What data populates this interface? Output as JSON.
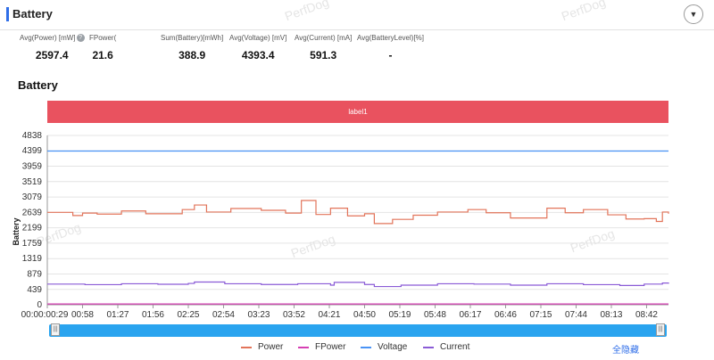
{
  "header": {
    "title": "Battery"
  },
  "stats": [
    {
      "label": "Avg(Power) [mW]",
      "value": "2597.4",
      "help": true
    },
    {
      "label": "FPower(",
      "value": "21.6",
      "help": false
    },
    {
      "label": "Sum(Battery)[mWh]",
      "value": "388.9",
      "help": false
    },
    {
      "label": "Avg(Voltage) [mV]",
      "value": "4393.4",
      "help": false
    },
    {
      "label": "Avg(Current) [mA]",
      "value": "591.3",
      "help": false
    },
    {
      "label": "Avg(BatteryLevel)[%]",
      "value": "-",
      "help": false
    }
  ],
  "watermark": "PerfDog",
  "chart_title": "Battery",
  "label_band": "label1",
  "slider": {
    "left_glyph": "|||",
    "right_glyph": "|||"
  },
  "hide_all_label": "全隐藏",
  "colors": {
    "power": "#e2745a",
    "fpower": "#d63fb3",
    "voltage": "#4a93f5",
    "current": "#8a5bd6",
    "label_band": "#e9525f",
    "accent": "#2f6ee8"
  },
  "chart_data": {
    "type": "line",
    "title": "Battery",
    "ylabel": "Battery",
    "xlabel": "",
    "yticks": [
      4838,
      4399,
      3959,
      3519,
      3079,
      2639,
      2199,
      1759,
      1319,
      879,
      439,
      0
    ],
    "ylim": [
      0,
      4838
    ],
    "x_ticks": [
      "00:00:00:29",
      "00:58",
      "01:27",
      "01:56",
      "02:25",
      "02:54",
      "03:23",
      "03:52",
      "04:21",
      "04:50",
      "05:19",
      "05:48",
      "06:17",
      "06:46",
      "07:15",
      "07:44",
      "08:13",
      "08:42"
    ],
    "x_tick_seconds": [
      29,
      58,
      87,
      116,
      145,
      174,
      203,
      232,
      261,
      290,
      319,
      348,
      377,
      406,
      435,
      464,
      493,
      522
    ],
    "xlim": [
      29,
      540
    ],
    "grid": true,
    "legend_position": "bottom",
    "series": [
      {
        "name": "Power",
        "x": [
          29,
          50,
          58,
          70,
          90,
          110,
          140,
          150,
          160,
          180,
          205,
          225,
          238,
          250,
          262,
          276,
          290,
          298,
          313,
          330,
          350,
          375,
          390,
          410,
          440,
          455,
          470,
          490,
          505,
          520,
          530,
          535,
          540
        ],
        "values": [
          2640,
          2550,
          2620,
          2590,
          2680,
          2600,
          2720,
          2850,
          2650,
          2750,
          2700,
          2620,
          2980,
          2580,
          2760,
          2540,
          2600,
          2320,
          2440,
          2560,
          2650,
          2720,
          2630,
          2480,
          2760,
          2630,
          2720,
          2570,
          2450,
          2460,
          2380,
          2650,
          2600
        ]
      },
      {
        "name": "FPower",
        "x": [
          29,
          540
        ],
        "values": [
          22,
          22
        ]
      },
      {
        "name": "Voltage",
        "x": [
          29,
          540
        ],
        "values": [
          4393,
          4393
        ]
      },
      {
        "name": "Current",
        "x": [
          29,
          60,
          90,
          120,
          145,
          150,
          175,
          205,
          235,
          262,
          265,
          290,
          298,
          320,
          350,
          380,
          410,
          440,
          470,
          500,
          520,
          535,
          540
        ],
        "values": [
          590,
          575,
          600,
          585,
          610,
          650,
          600,
          580,
          600,
          560,
          640,
          580,
          520,
          560,
          600,
          590,
          560,
          600,
          575,
          550,
          590,
          620,
          600
        ]
      }
    ]
  }
}
